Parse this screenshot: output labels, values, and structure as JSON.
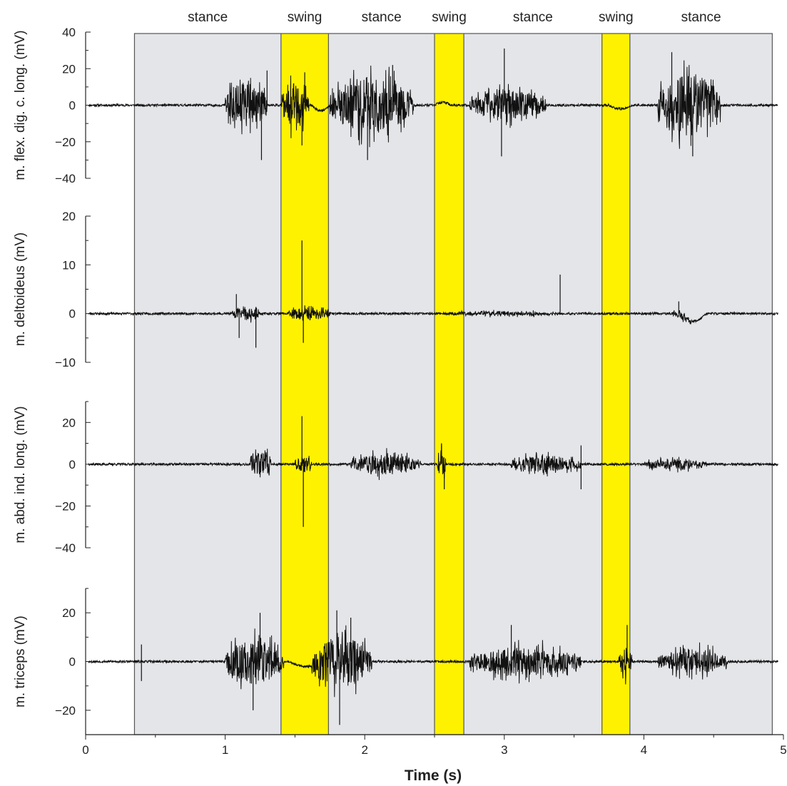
{
  "chart_data": {
    "type": "line",
    "xlabel": "Time (s)",
    "xlim": [
      0,
      5
    ],
    "xticks": [
      "0",
      "1",
      "2",
      "3",
      "4",
      "5"
    ],
    "stance_color": "#e4e5e8",
    "swing_color": "#fff200",
    "trace_color": "#111111",
    "recording_range": [
      0.35,
      4.92
    ],
    "phases": [
      {
        "label": "stance",
        "type": "stance",
        "start": 0.35,
        "end": 1.4
      },
      {
        "label": "swing",
        "type": "swing",
        "start": 1.4,
        "end": 1.74
      },
      {
        "label": "stance",
        "type": "stance",
        "start": 1.74,
        "end": 2.5
      },
      {
        "label": "swing",
        "type": "swing",
        "start": 2.5,
        "end": 2.71
      },
      {
        "label": "stance",
        "type": "stance",
        "start": 2.71,
        "end": 3.7
      },
      {
        "label": "swing",
        "type": "swing",
        "start": 3.7,
        "end": 3.9
      },
      {
        "label": "stance",
        "type": "stance",
        "start": 3.9,
        "end": 4.92
      }
    ],
    "series": [
      {
        "name": "m. flex. dig. c. long. (mV)",
        "ylim": [
          -40,
          40
        ],
        "yticks": [
          "40",
          "20",
          "0",
          "−20",
          "−40"
        ],
        "seed": 11,
        "bursts": [
          [
            1.0,
            1.3,
            13
          ],
          [
            1.4,
            1.6,
            12
          ],
          [
            1.75,
            2.35,
            15
          ],
          [
            2.75,
            3.3,
            8
          ],
          [
            4.1,
            4.55,
            17
          ]
        ],
        "spikes": [
          [
            1.26,
            -30
          ],
          [
            1.3,
            19
          ],
          [
            1.55,
            -22
          ],
          [
            1.57,
            18
          ],
          [
            2.02,
            -30
          ],
          [
            2.2,
            22
          ],
          [
            3.0,
            31
          ],
          [
            2.98,
            -28
          ],
          [
            4.35,
            -28
          ],
          [
            4.2,
            29
          ]
        ],
        "drift": [
          [
            1.62,
            1.75,
            -3
          ],
          [
            2.5,
            2.62,
            1.5
          ],
          [
            3.75,
            3.92,
            -2
          ]
        ]
      },
      {
        "name": "m. deltoideus (mV)",
        "ylim": [
          -10,
          20
        ],
        "yticks": [
          "20",
          "10",
          "0",
          "−10"
        ],
        "seed": 23,
        "bursts": [
          [
            1.05,
            1.25,
            1.3
          ],
          [
            1.45,
            1.75,
            1.2
          ],
          [
            2.6,
            3.4,
            0.4
          ],
          [
            4.2,
            4.35,
            0.8
          ]
        ],
        "spikes": [
          [
            1.55,
            15
          ],
          [
            1.56,
            -6
          ],
          [
            1.1,
            -5
          ],
          [
            1.22,
            -7
          ],
          [
            1.08,
            4
          ],
          [
            3.4,
            8
          ],
          [
            4.25,
            2.5
          ]
        ],
        "drift": [
          [
            4.25,
            4.45,
            -1.6
          ]
        ]
      },
      {
        "name": "m. abd. ind. long. (mV)",
        "ylim": [
          -40,
          30
        ],
        "yticks": [
          "20",
          "0",
          "−20",
          "−40"
        ],
        "seed": 37,
        "bursts": [
          [
            1.18,
            1.33,
            6
          ],
          [
            1.5,
            1.62,
            4
          ],
          [
            1.9,
            2.4,
            5
          ],
          [
            2.52,
            2.58,
            6
          ],
          [
            3.05,
            3.55,
            4
          ],
          [
            4.0,
            4.45,
            2.5
          ]
        ],
        "spikes": [
          [
            1.55,
            23
          ],
          [
            1.56,
            -30
          ],
          [
            2.55,
            10
          ],
          [
            2.57,
            -12
          ],
          [
            3.55,
            -12
          ],
          [
            3.55,
            9
          ]
        ],
        "drift": []
      },
      {
        "name": "m. triceps (mV)",
        "ylim": [
          -30,
          30
        ],
        "yticks": [
          "20",
          "0",
          "−20"
        ],
        "seed": 53,
        "bursts": [
          [
            1.0,
            1.42,
            9
          ],
          [
            1.62,
            2.05,
            10
          ],
          [
            2.75,
            3.55,
            6
          ],
          [
            3.82,
            3.92,
            6
          ],
          [
            4.1,
            4.6,
            5
          ]
        ],
        "spikes": [
          [
            1.2,
            -20
          ],
          [
            1.25,
            20
          ],
          [
            1.8,
            21
          ],
          [
            1.82,
            -26
          ],
          [
            1.9,
            18
          ],
          [
            3.05,
            15
          ],
          [
            3.88,
            15
          ],
          [
            0.4,
            -8
          ],
          [
            0.4,
            7
          ]
        ],
        "drift": [
          [
            1.45,
            1.72,
            -2
          ]
        ]
      }
    ]
  }
}
